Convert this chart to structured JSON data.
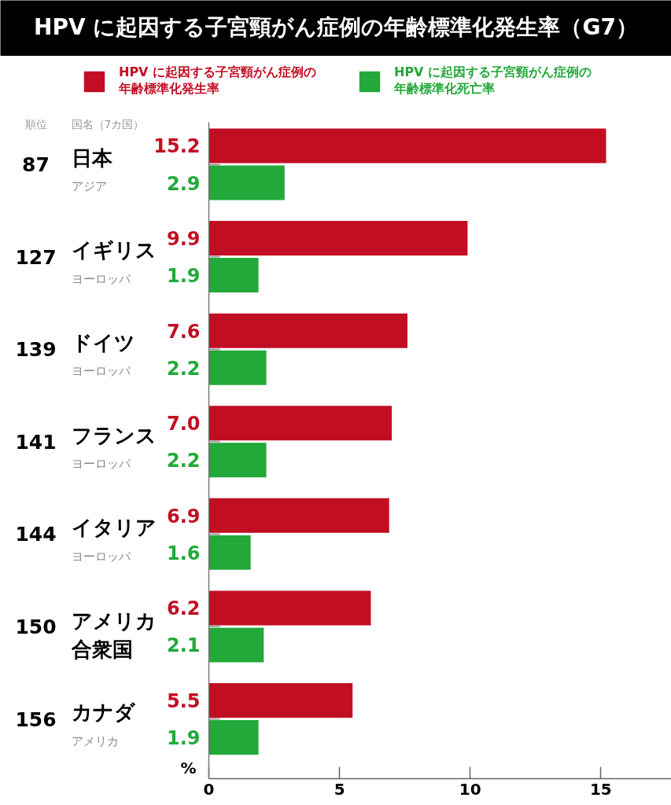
{
  "chart_data": {
    "type": "bar",
    "orientation": "horizontal",
    "title": "HPV に起因する子宮頸がん症例の年齢標準化発生率（G7）",
    "xlabel": "%",
    "ylabel": "国名（7カ国）",
    "categories": [
      "日本",
      "イギリス",
      "ドイツ",
      "フランス",
      "イタリア",
      "アメリカ合衆国",
      "カナダ"
    ],
    "series": [
      {
        "name": "HPV に起因する子宮頸がん症例の年齢標準化発生率",
        "color": "#c20e23",
        "values": [
          15.2,
          9.9,
          7.6,
          7.0,
          6.9,
          6.2,
          5.5
        ],
        "value_labels": [
          "15.2",
          "9.9",
          "7.6",
          "7.0",
          "6.9",
          "6.2",
          "5.5"
        ]
      },
      {
        "name": "HPV に起因する子宮頸がん症例の年齢標準化死亡率",
        "color": "#23a83a",
        "values": [
          2.9,
          1.9,
          2.2,
          2.2,
          1.6,
          2.1,
          1.9
        ],
        "value_labels": [
          "2.9",
          "1.9",
          "2.2",
          "2.2",
          "1.6",
          "2.1",
          "1.9"
        ]
      }
    ],
    "xlim": [
      0,
      17.7
    ],
    "xticks": [
      0,
      5,
      10,
      15
    ],
    "legend": "top",
    "annotations": [
      "順位",
      "87",
      "アジア",
      "127",
      "ヨーロッパ",
      "139",
      "ヨーロッパ",
      "141",
      "ヨーロッパ",
      "144",
      "ヨーロッパ",
      "150",
      "156",
      "アメリカ"
    ]
  }
}
